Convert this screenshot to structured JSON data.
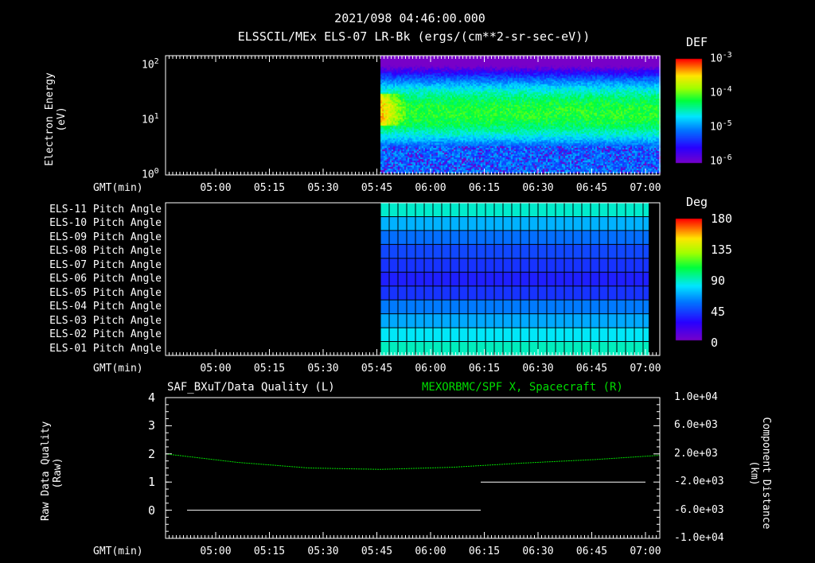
{
  "header": {
    "timestamp": "2021/098 04:46:00.000",
    "subtitle": "ELSSCIL/MEx ELS-07 LR-Bk  (ergs/(cm**2-sr-sec-eV))"
  },
  "chart_data": [
    {
      "type": "heatmap",
      "name": "spectrogram",
      "ylabel": "Electron Energy",
      "yunit": "(eV)",
      "yscale": "log",
      "ylim": [
        1,
        150
      ],
      "yticks": [
        {
          "base": "10",
          "exp": "0"
        },
        {
          "base": "10",
          "exp": "1"
        },
        {
          "base": "10",
          "exp": "2"
        }
      ],
      "xlabel": "GMT(min)",
      "xticks": [
        "05:00",
        "05:15",
        "05:30",
        "05:45",
        "06:00",
        "06:15",
        "06:30",
        "06:45",
        "07:00"
      ],
      "data_start": "05:46",
      "data_end": "07:04",
      "colorbar": {
        "title": "DEF",
        "scale": "log",
        "range": [
          1e-06,
          0.001
        ],
        "ticks": [
          {
            "base": "10",
            "exp": "-3"
          },
          {
            "base": "10",
            "exp": "-4"
          },
          {
            "base": "10",
            "exp": "-5"
          },
          {
            "base": "10",
            "exp": "-6"
          }
        ]
      }
    },
    {
      "type": "heatmap",
      "name": "pitch-angle",
      "xlabel": "GMT(min)",
      "rows": [
        "ELS-11 Pitch Angle",
        "ELS-10 Pitch Angle",
        "ELS-09 Pitch Angle",
        "ELS-08 Pitch Angle",
        "ELS-07 Pitch Angle",
        "ELS-06 Pitch Angle",
        "ELS-05 Pitch Angle",
        "ELS-04 Pitch Angle",
        "ELS-03 Pitch Angle",
        "ELS-02 Pitch Angle",
        "ELS-01 Pitch Angle"
      ],
      "values_deg": [
        88,
        70,
        55,
        45,
        40,
        35,
        40,
        58,
        68,
        82,
        90
      ],
      "data_start": "05:46",
      "data_end": "07:00",
      "colorbar": {
        "title": "Deg",
        "range": [
          0,
          180
        ],
        "ticks": [
          "180",
          "135",
          "90",
          "45",
          "0"
        ]
      }
    },
    {
      "type": "line",
      "name": "data-quality",
      "title_left": "SAF_BXuT/Data Quality (L)",
      "title_right": "MEXORBMC/SPF X, Spacecraft (R)",
      "ylabel": "Raw Data Quality",
      "yunit": "(Raw)",
      "ylim": [
        -1,
        4
      ],
      "yticks": [
        "4",
        "3",
        "2",
        "1",
        "0"
      ],
      "y2label": "Component Distance",
      "y2unit": "(km)",
      "y2lim": [
        -10000,
        10000
      ],
      "y2ticks": [
        "1.0e+04",
        "6.0e+03",
        "2.0e+03",
        "-2.0e+03",
        "-6.0e+03",
        "-1.0e+04"
      ],
      "xlabel": "GMT(min)",
      "series": [
        {
          "name": "Data Quality",
          "color": "#ffffff",
          "segments": [
            {
              "from": "04:52",
              "to": "06:14",
              "value": 0
            },
            {
              "from": "06:14",
              "to": "07:00",
              "value": 1
            }
          ]
        },
        {
          "name": "SPF X Spacecraft",
          "color": "#00dd00",
          "x_min": [
            0,
            20,
            40,
            60,
            80,
            100,
            120,
            138
          ],
          "y_km": [
            2000,
            800,
            0,
            -200,
            100,
            700,
            1200,
            1800
          ]
        }
      ]
    }
  ]
}
